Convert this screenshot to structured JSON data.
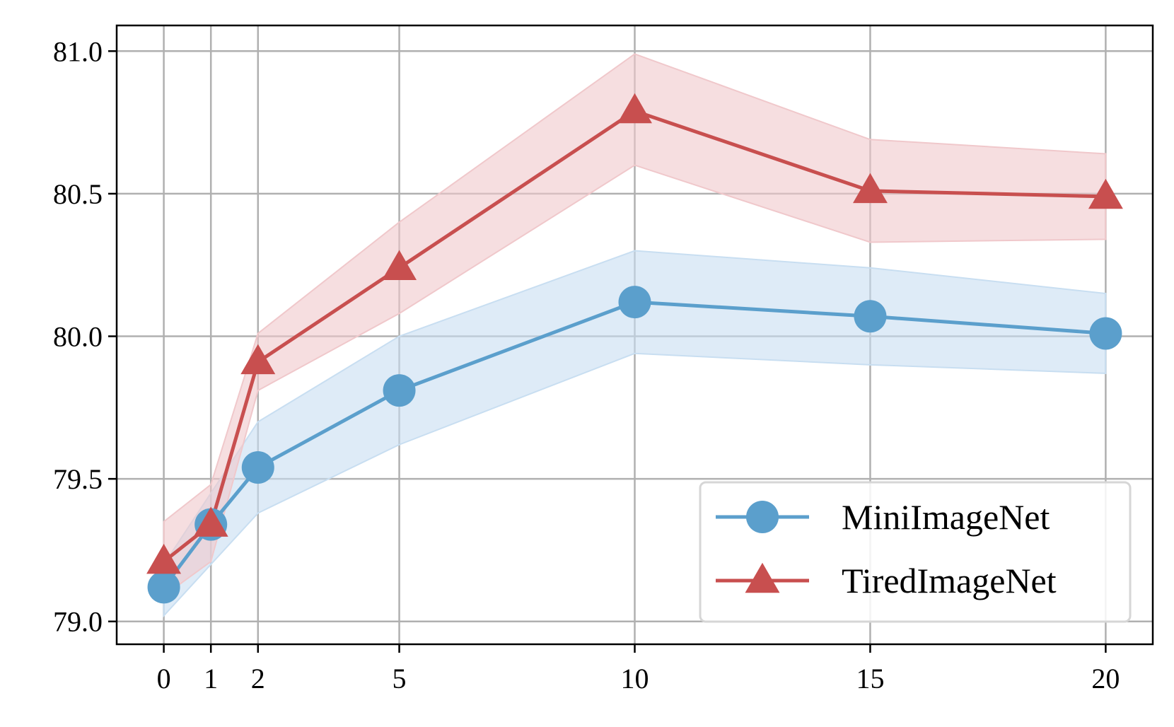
{
  "chart_data": {
    "type": "line",
    "title": "",
    "xlabel": "",
    "ylabel": "",
    "x": [
      0,
      1,
      2,
      5,
      10,
      15,
      20
    ],
    "x_ticks": [
      0,
      1,
      2,
      5,
      10,
      15,
      20
    ],
    "x_tick_labels": [
      "0",
      "1",
      "2",
      "5",
      "10",
      "15",
      "20"
    ],
    "xlim": [
      -1,
      21
    ],
    "y_ticks": [
      79.0,
      79.5,
      80.0,
      80.5,
      81.0
    ],
    "y_tick_labels": [
      "79.0",
      "79.5",
      "80.0",
      "80.5",
      "81.0"
    ],
    "ylim": [
      78.92,
      81.09
    ],
    "grid": true,
    "legend_position": "lower-right",
    "series": [
      {
        "name": "MiniImageNet",
        "color": "#5b9fcc",
        "band_color": "#c8def1",
        "marker": "circle",
        "values": [
          79.12,
          79.34,
          79.54,
          79.81,
          80.12,
          80.07,
          80.01
        ],
        "lower": [
          79.02,
          79.2,
          79.38,
          79.62,
          79.94,
          79.9,
          79.87
        ],
        "upper": [
          79.2,
          79.45,
          79.7,
          80.0,
          80.3,
          80.24,
          80.15
        ]
      },
      {
        "name": "TiredImageNet",
        "color": "#c84f4f",
        "band_color": "#f0c8cb",
        "marker": "triangle",
        "values": [
          79.21,
          79.34,
          79.91,
          80.24,
          80.79,
          80.51,
          80.49
        ],
        "lower": [
          79.09,
          79.21,
          79.81,
          80.08,
          80.6,
          80.33,
          80.34
        ],
        "upper": [
          79.35,
          79.48,
          80.01,
          80.4,
          80.99,
          80.69,
          80.64
        ]
      }
    ]
  }
}
